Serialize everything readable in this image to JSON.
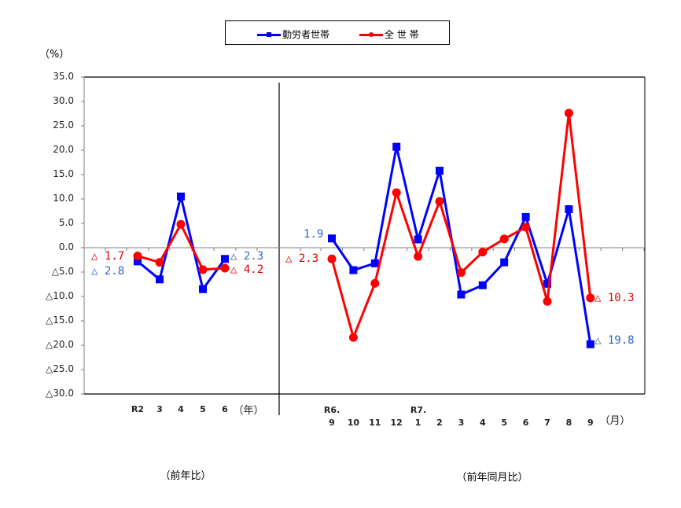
{
  "legend": {
    "series_workers": "勤労者世帯",
    "series_all": "全 世 帯"
  },
  "axis": {
    "y_unit": "（%）",
    "y_ticks": [
      "35.0",
      "30.0",
      "25.0",
      "20.0",
      "15.0",
      "10.0",
      "5.0",
      "0.0",
      "△5.0",
      "△10.0",
      "△15.0",
      "△20.0",
      "△25.0",
      "△30.0"
    ],
    "annual_unit": "（年）",
    "monthly_unit": "（月）",
    "annual_ticks": [
      "R2",
      "3",
      "4",
      "5",
      "6"
    ],
    "monthly_era_labels": {
      "r6": "R6.",
      "r7": "R7."
    },
    "monthly_ticks": [
      "9",
      "10",
      "11",
      "12",
      "1",
      "2",
      "3",
      "4",
      "5",
      "6",
      "7",
      "8",
      "9"
    ]
  },
  "captions": {
    "annual": "（前年比）",
    "monthly": "（前年同月比）"
  },
  "annotations": {
    "annual_red_start": "△ 1.7",
    "annual_blue_start": "△ 2.8",
    "annual_blue_end": "△ 2.3",
    "annual_red_end": "△ 4.2",
    "monthly_blue_start": "1.9",
    "monthly_red_start": "△ 2.3",
    "monthly_red_end": "△ 10.3",
    "monthly_blue_end": "△ 19.8"
  },
  "colors": {
    "workers": "#0000ff",
    "all": "#ff0000",
    "workers_label": "#3366cc",
    "all_label": "#e00000"
  },
  "chart_data": [
    {
      "type": "line",
      "title": "前年比",
      "xlabel": "（年）",
      "ylabel": "（%）",
      "categories": [
        "R2",
        "3",
        "4",
        "5",
        "6"
      ],
      "series": [
        {
          "name": "勤労者世帯",
          "values": [
            -2.8,
            -6.5,
            10.5,
            -8.5,
            -2.3
          ]
        },
        {
          "name": "全 世 帯",
          "values": [
            -1.7,
            -3.0,
            4.8,
            -4.5,
            -4.2
          ]
        }
      ],
      "ylim": [
        -30,
        35
      ],
      "grid": false,
      "legend_position": "top"
    },
    {
      "type": "line",
      "title": "前年同月比",
      "xlabel": "（月）",
      "ylabel": "（%）",
      "categories": [
        "R6.9",
        "10",
        "11",
        "12",
        "R7.1",
        "2",
        "3",
        "4",
        "5",
        "6",
        "7",
        "8",
        "9"
      ],
      "series": [
        {
          "name": "勤労者世帯",
          "values": [
            1.9,
            -4.6,
            -3.2,
            20.7,
            1.7,
            15.8,
            -9.6,
            -7.7,
            -3.0,
            6.3,
            -7.4,
            7.9,
            -19.8
          ]
        },
        {
          "name": "全 世 帯",
          "values": [
            -2.3,
            -18.4,
            -7.3,
            11.3,
            -1.8,
            9.5,
            -5.1,
            -0.9,
            1.8,
            4.2,
            -11.0,
            27.6,
            -10.3
          ]
        }
      ],
      "ylim": [
        -30,
        35
      ],
      "grid": false,
      "legend_position": "top"
    }
  ]
}
